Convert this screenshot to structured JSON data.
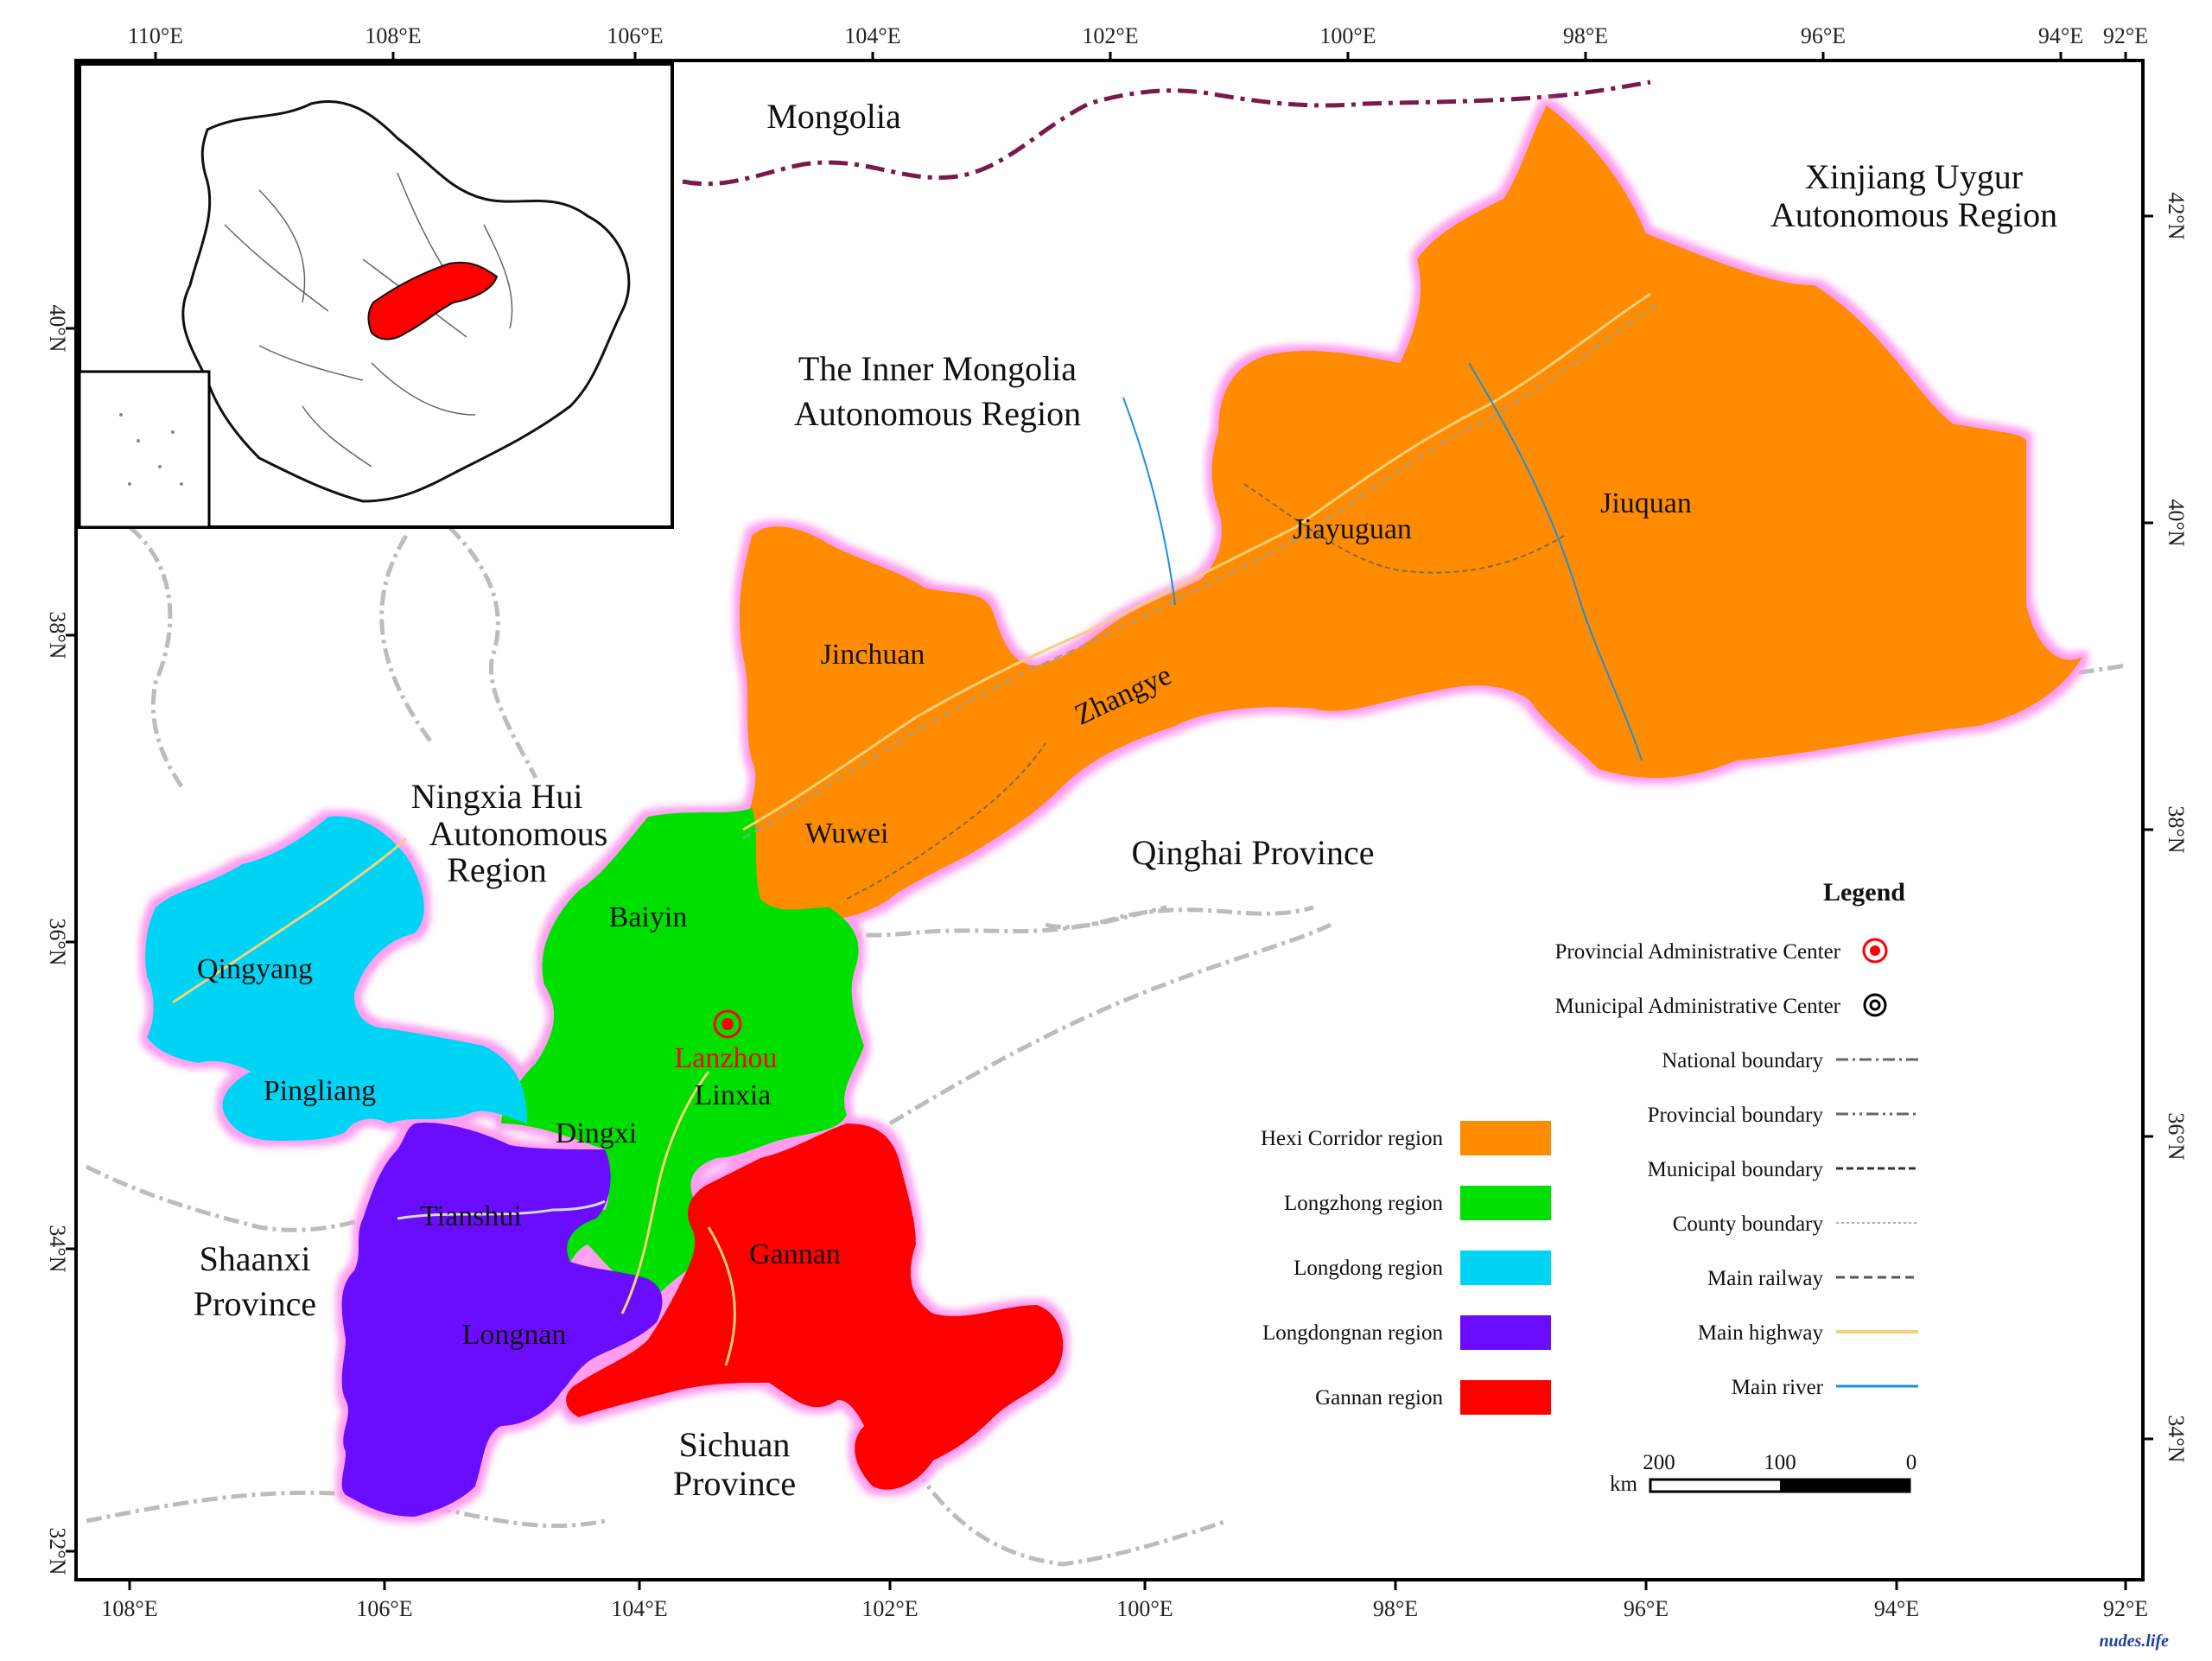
{
  "map": {
    "colors": {
      "hexi": "#ff8c00",
      "longzhong": "#00e000",
      "longdong": "#00d4f5",
      "longdongnan": "#6a0dff",
      "gannan": "#ff0000",
      "halo": "#ff9ef0",
      "national_border": "#7a1a4a",
      "highway": "#f5d07a",
      "river": "#1a8fe0"
    },
    "top_ticks": [
      "110°E",
      "108°E",
      "106°E",
      "104°E",
      "102°E",
      "100°E",
      "98°E",
      "96°E",
      "94°E",
      "92°E"
    ],
    "bottom_ticks": [
      "108°E",
      "106°E",
      "104°E",
      "102°E",
      "100°E",
      "98°E",
      "96°E",
      "94°E",
      "92°E"
    ],
    "left_ticks": [
      "40°N",
      "38°N",
      "36°N",
      "34°N",
      "32°N"
    ],
    "right_ticks": [
      "42°N",
      "40°N",
      "38°N",
      "36°N",
      "34°N"
    ],
    "places": {
      "mongolia": "Mongolia",
      "xinjiang_1": "Xinjiang  Uygur",
      "xinjiang_2": "Autonomous Region",
      "inner_mongolia_1": "The Inner Mongolia",
      "inner_mongolia_2": "Autonomous Region",
      "ningxia_1": "Ningxia Hui",
      "ningxia_2": "Autonomous",
      "ningxia_3": "Region",
      "qinghai": "Qinghai Province",
      "shaanxi_1": "Shaanxi",
      "shaanxi_2": "Province",
      "sichuan_1": "Sichuan",
      "sichuan_2": "Province"
    },
    "cities": {
      "jiuquan": "Jiuquan",
      "jiayuguan": "Jiayuguan",
      "zhangye": "Zhangye",
      "jinchuan": "Jinchuan",
      "wuwei": "Wuwei",
      "baiyin": "Baiyin",
      "lanzhou": "Lanzhou",
      "linxia": "Linxia",
      "dingxi": "Dingxi",
      "qingyang": "Qingyang",
      "pingliang": "Pingliang",
      "tianshui": "Tianshui",
      "longnan": "Longnan",
      "gannan": "Gannan"
    },
    "legend": {
      "title": "Legend",
      "symbols": [
        {
          "label": "Provincial Administrative Center",
          "icon": "provincial-center-icon"
        },
        {
          "label": "Municipal Administrative Center",
          "icon": "municipal-center-icon"
        },
        {
          "label": "National boundary",
          "icon": "national-boundary-line-icon"
        },
        {
          "label": "Provincial boundary",
          "icon": "provincial-boundary-line-icon"
        },
        {
          "label": "Municipal boundary",
          "icon": "municipal-boundary-line-icon"
        },
        {
          "label": "County boundary",
          "icon": "county-boundary-line-icon"
        },
        {
          "label": "Main  railway",
          "icon": "railway-line-icon"
        },
        {
          "label": "Main highway",
          "icon": "highway-line-icon"
        },
        {
          "label": "Main river",
          "icon": "river-line-icon"
        }
      ],
      "regions": [
        {
          "label": "Hexi Corridor region",
          "color": "#ff8c00"
        },
        {
          "label": "Longzhong region",
          "color": "#00e000"
        },
        {
          "label": "Longdong region",
          "color": "#00d4f5"
        },
        {
          "label": "Longdongnan region",
          "color": "#6a0dff"
        },
        {
          "label": "Gannan region",
          "color": "#ff0000"
        }
      ]
    },
    "scale_bar": {
      "labels": [
        "0",
        "100",
        "200"
      ],
      "unit": "km"
    },
    "watermark": "nudes.life"
  }
}
